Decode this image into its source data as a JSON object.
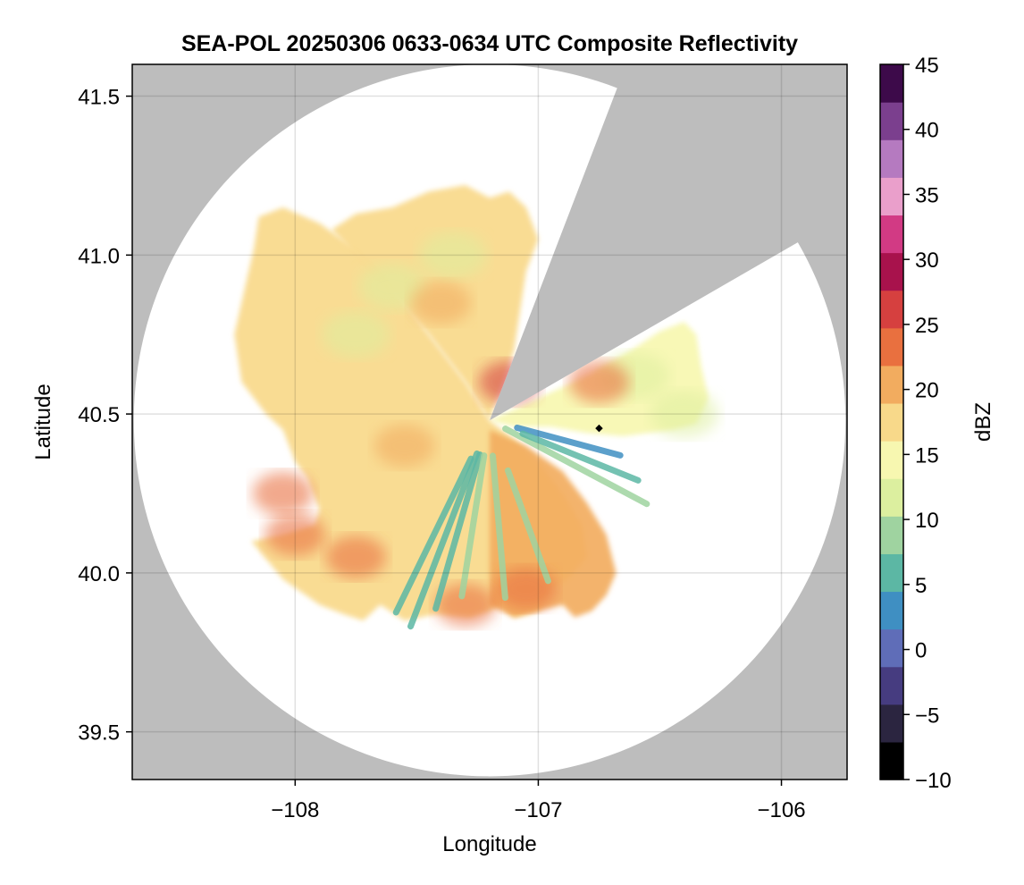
{
  "chart_data": {
    "type": "heatmap",
    "title": "SEA-POL 20250306 0633-0634 UTC Composite Reflectivity",
    "xlabel": "Longitude",
    "ylabel": "Latitude",
    "xlim": [
      -108.67,
      -105.73
    ],
    "ylim": [
      39.35,
      41.6
    ],
    "x_ticks": [
      -108,
      -107,
      -106
    ],
    "x_tick_labels": [
      "−108",
      "−107",
      "−106"
    ],
    "y_ticks": [
      39.5,
      40.0,
      40.5,
      41.0,
      41.5
    ],
    "y_tick_labels": [
      "39.5",
      "40.0",
      "40.5",
      "41.0",
      "41.5"
    ],
    "grid": true,
    "background_color": "#bdbdbd",
    "radar": {
      "center": [
        -107.2,
        40.48
      ],
      "range_lat_deg": 1.12,
      "blocked_sector_deg": [
        21,
        60
      ],
      "marker": [
        -106.75,
        40.455
      ]
    },
    "colorbar": {
      "label": "dBZ",
      "min": -10,
      "max": 45,
      "ticks": [
        -10,
        -5,
        0,
        5,
        10,
        15,
        20,
        25,
        30,
        35,
        40,
        45
      ],
      "tick_labels": [
        "−10",
        "−5",
        "0",
        "5",
        "10",
        "15",
        "20",
        "25",
        "30",
        "35",
        "40",
        "45"
      ],
      "colors": [
        "#000000",
        "#2b2540",
        "#463c80",
        "#5f6db8",
        "#3f8fc2",
        "#5cb7a4",
        "#9fd3a0",
        "#dcef9f",
        "#f7f7b0",
        "#f8d98a",
        "#f2ac5f",
        "#e9703f",
        "#d6403f",
        "#a8124c",
        "#d23a84",
        "#ea9fcb",
        "#b57ac0",
        "#7b3f8e",
        "#3d0a4a"
      ]
    },
    "echo_regions": [
      {
        "name": "west echo",
        "x": [
          -108.18,
          -108.05,
          -107.9,
          -107.8,
          -107.72,
          -107.65,
          -107.55,
          -107.42,
          -107.28,
          -107.2,
          -107.15,
          -107.1,
          -107.05,
          -107.0,
          -106.95,
          -106.88,
          -106.8,
          -106.82,
          -106.9,
          -107.0,
          -107.1,
          -107.2,
          -107.3,
          -107.45,
          -107.6,
          -107.75,
          -107.9,
          -108.05,
          -108.15,
          -108.17,
          -108.2,
          -108.25,
          -108.22,
          -108.12,
          -108.05,
          -108.0,
          -107.95,
          -107.9,
          -107.92,
          -108.05,
          -108.18
        ],
        "y": [
          40.1,
          39.98,
          39.9,
          39.87,
          39.85,
          39.9,
          39.85,
          39.87,
          39.86,
          39.88,
          39.9,
          39.86,
          39.87,
          39.88,
          39.95,
          39.98,
          40.05,
          40.15,
          40.25,
          40.35,
          40.42,
          40.48,
          40.6,
          40.75,
          40.9,
          41.02,
          41.1,
          41.15,
          41.12,
          41.02,
          40.92,
          40.75,
          40.6,
          40.5,
          40.45,
          40.35,
          40.3,
          40.2,
          40.15,
          40.12,
          40.1
        ],
        "dbz": 17
      },
      {
        "name": "north wedge",
        "x": [
          -107.2,
          -107.3,
          -107.45,
          -107.6,
          -107.75,
          -107.85,
          -107.75,
          -107.6,
          -107.45,
          -107.3,
          -107.2,
          -107.12,
          -107.05,
          -107.0,
          -107.05,
          -107.1,
          -107.2
        ],
        "y": [
          40.48,
          40.6,
          40.75,
          40.88,
          41.0,
          41.08,
          41.13,
          41.15,
          41.2,
          41.22,
          41.18,
          41.2,
          41.15,
          41.05,
          40.95,
          40.7,
          40.48
        ],
        "dbz": 18
      },
      {
        "name": "east echo",
        "x": [
          -107.2,
          -107.0,
          -106.8,
          -106.62,
          -106.5,
          -106.4,
          -106.35,
          -106.33,
          -106.3,
          -106.35,
          -106.45,
          -106.55,
          -106.65,
          -106.8,
          -106.95,
          -107.1,
          -107.2
        ],
        "y": [
          40.48,
          40.55,
          40.62,
          40.7,
          40.76,
          40.79,
          40.75,
          40.65,
          40.55,
          40.47,
          40.45,
          40.44,
          40.43,
          40.44,
          40.46,
          40.46,
          40.48
        ],
        "dbz": 15
      },
      {
        "name": "southeast echo",
        "x": [
          -107.2,
          -107.05,
          -106.9,
          -106.8,
          -106.72,
          -106.68,
          -106.72,
          -106.78,
          -106.85,
          -106.9,
          -107.0,
          -107.1,
          -107.2
        ],
        "y": [
          40.45,
          40.4,
          40.32,
          40.22,
          40.12,
          40.0,
          39.93,
          39.88,
          39.86,
          39.9,
          39.88,
          39.86,
          39.9
        ],
        "dbz": 19
      }
    ],
    "hotspots": [
      {
        "x": -108.0,
        "y": 40.12,
        "dbz": 24
      },
      {
        "x": -107.75,
        "y": 40.05,
        "dbz": 23
      },
      {
        "x": -107.12,
        "y": 40.6,
        "dbz": 25
      },
      {
        "x": -107.4,
        "y": 40.85,
        "dbz": 21
      },
      {
        "x": -107.05,
        "y": 39.95,
        "dbz": 24
      },
      {
        "x": -107.55,
        "y": 40.4,
        "dbz": 20
      },
      {
        "x": -106.75,
        "y": 40.6,
        "dbz": 22
      },
      {
        "x": -108.05,
        "y": 40.25,
        "dbz": 22
      },
      {
        "x": -107.3,
        "y": 39.9,
        "dbz": 22
      }
    ],
    "green_patches": [
      {
        "x": -107.6,
        "y": 40.9,
        "dbz": 11
      },
      {
        "x": -107.35,
        "y": 41.0,
        "dbz": 12
      },
      {
        "x": -107.75,
        "y": 40.75,
        "dbz": 12
      },
      {
        "x": -106.6,
        "y": 40.62,
        "dbz": 12
      },
      {
        "x": -106.4,
        "y": 40.5,
        "dbz": 13
      }
    ],
    "low_reflectivity_rays": [
      {
        "azimuth_deg": 206,
        "start": 0.12,
        "end": 0.6,
        "dbz": 7
      },
      {
        "azimuth_deg": 201,
        "start": 0.1,
        "end": 0.62,
        "dbz": 6
      },
      {
        "azimuth_deg": 196,
        "start": 0.1,
        "end": 0.55,
        "dbz": 7
      },
      {
        "azimuth_deg": 189,
        "start": 0.1,
        "end": 0.5,
        "dbz": 8
      },
      {
        "azimuth_deg": 175,
        "start": 0.1,
        "end": 0.5,
        "dbz": 9
      },
      {
        "azimuth_deg": 160,
        "start": 0.15,
        "end": 0.48,
        "dbz": 10
      },
      {
        "azimuth_deg": 118,
        "start": 0.05,
        "end": 0.5,
        "dbz": 9
      },
      {
        "azimuth_deg": 105,
        "start": 0.08,
        "end": 0.38,
        "dbz": 4
      },
      {
        "azimuth_deg": 112,
        "start": 0.1,
        "end": 0.45,
        "dbz": 6
      }
    ]
  }
}
